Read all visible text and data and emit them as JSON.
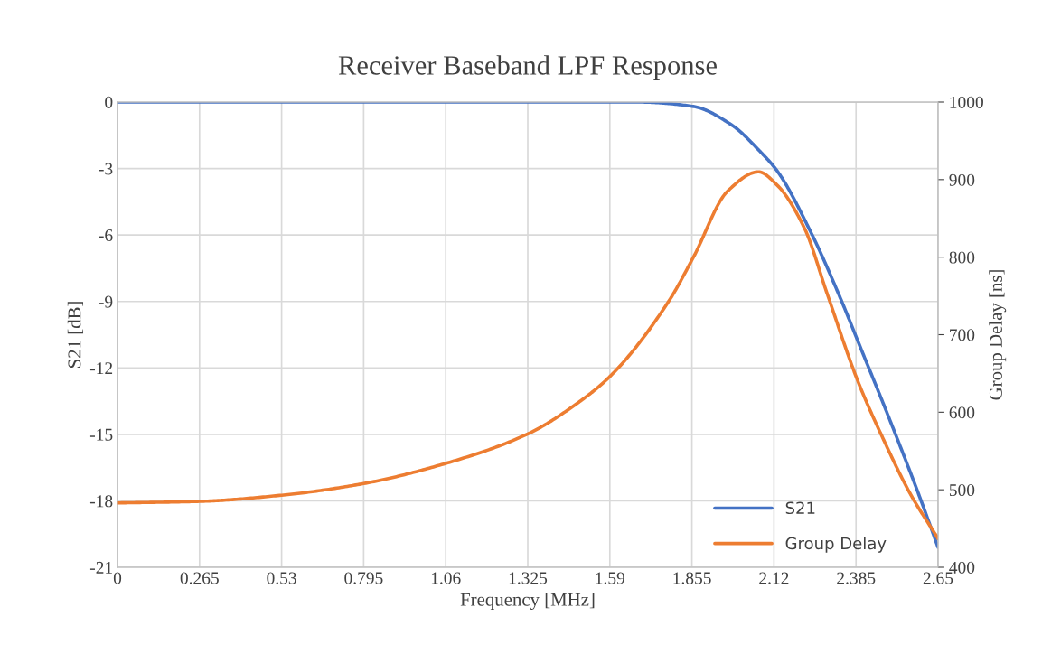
{
  "chart_data": {
    "type": "line",
    "title": "Receiver Baseband LPF Response",
    "xlabel": "Frequency [MHz]",
    "ylabel": "S21 [dB]",
    "y2label": "Group Delay [ns]",
    "xlim": [
      0,
      2.65
    ],
    "xticks": [
      0,
      0.265,
      0.53,
      0.795,
      1.06,
      1.325,
      1.59,
      1.855,
      2.12,
      2.385,
      2.65
    ],
    "ylim": [
      -21,
      0
    ],
    "yticks": [
      -21,
      -18,
      -15,
      -12,
      -9,
      -6,
      -3,
      0
    ],
    "y2lim": [
      400,
      1000
    ],
    "y2ticks": [
      400,
      500,
      600,
      700,
      800,
      900,
      1000
    ],
    "grid": true,
    "legend": "bottom right",
    "series": [
      {
        "name": "S21",
        "color": "#4472c4",
        "x": [
          0,
          0.5,
          1.0,
          1.5,
          1.68,
          1.86,
          1.98,
          2.08,
          2.13,
          2.24,
          2.33,
          2.4,
          2.49,
          2.59,
          2.65
        ],
        "values": [
          0,
          0,
          0,
          0,
          0,
          -0.2,
          -1.0,
          -2.3,
          -3.1,
          -5.9,
          -8.7,
          -11.1,
          -14.2,
          -17.8,
          -20.1
        ]
      },
      {
        "name": "Group Delay",
        "color": "#ed7d31",
        "axis": "y2",
        "x": [
          0,
          0.265,
          0.53,
          0.795,
          1.06,
          1.325,
          1.49,
          1.59,
          1.78,
          1.86,
          1.97,
          2.07,
          2.13,
          2.22,
          2.29,
          2.39,
          2.47,
          2.56,
          2.65
        ],
        "values": [
          483,
          485,
          493,
          508,
          534,
          572,
          613,
          646,
          743,
          800,
          885,
          910,
          893,
          836,
          755,
          641,
          568,
          495,
          437
        ]
      }
    ]
  }
}
